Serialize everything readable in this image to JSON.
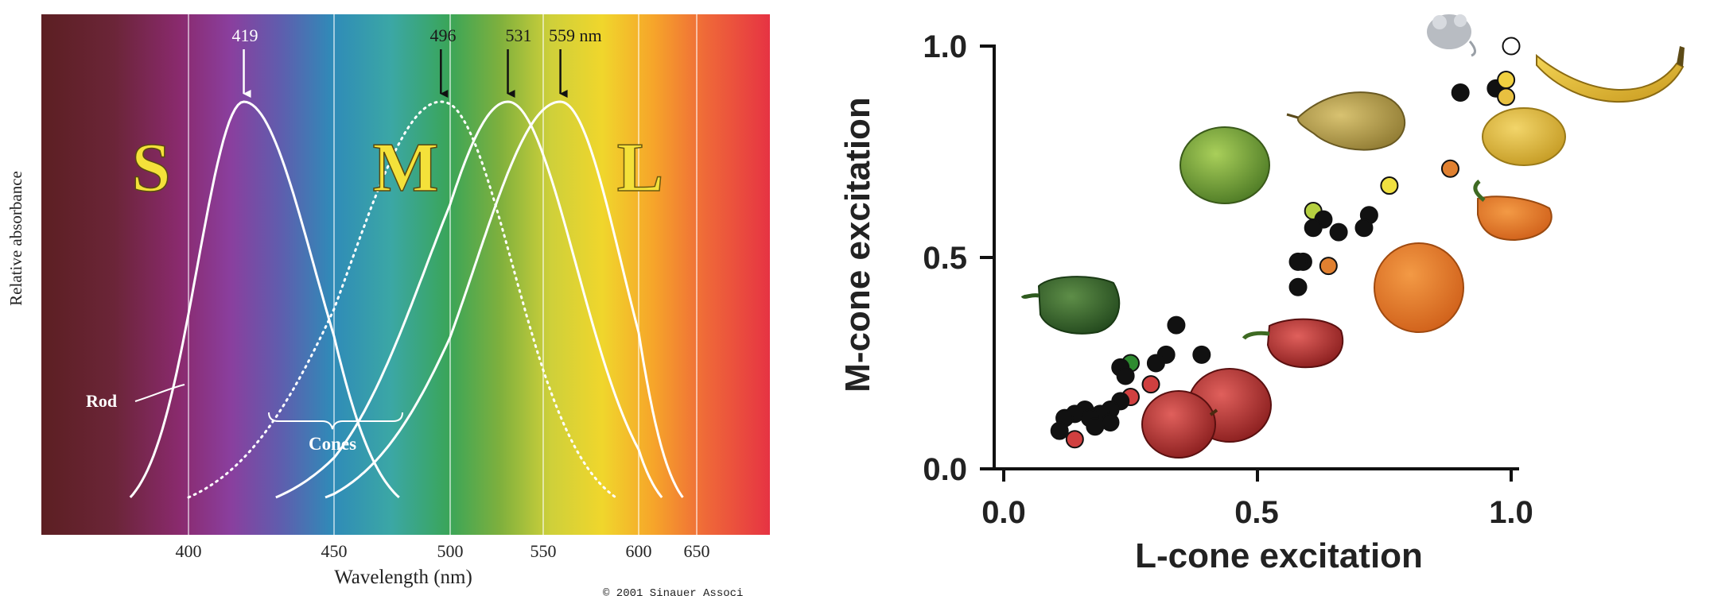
{
  "left_panel": {
    "peak_labels": [
      "419",
      "496",
      "531",
      "559 nm"
    ],
    "cone_letters": {
      "s": "S",
      "m": "M",
      "l": "L"
    },
    "rod_label": "Rod",
    "cones_label": "Cones",
    "ylabel": "Relative absorbance",
    "xlabel": "Wavelength (nm)",
    "x_ticks": [
      "400",
      "450",
      "500",
      "550",
      "600",
      "650"
    ],
    "copyright": "© 2001 Sinauer Associ"
  },
  "right_panel": {
    "ylabel": "M-cone excitation",
    "xlabel": "L-cone excitation",
    "x_ticks": [
      "0.0",
      "0.5",
      "1.0"
    ],
    "y_ticks": [
      "0.0",
      "0.5",
      "1.0"
    ]
  },
  "chart_data": [
    {
      "type": "line",
      "xlabel": "Wavelength (nm)",
      "ylabel": "Relative absorbance",
      "xlim": [
        320,
        680
      ],
      "ylim": [
        0,
        1.05
      ],
      "x_tick_values": [
        400,
        450,
        500,
        550,
        600,
        650
      ],
      "series": [
        {
          "name": "S",
          "peak": 419,
          "from": 380,
          "to": 478,
          "style": "solid"
        },
        {
          "name": "Rod",
          "peak": 496,
          "from": 400,
          "to": 588,
          "style": "dotted"
        },
        {
          "name": "M",
          "peak": 531,
          "from": 430,
          "to": 620,
          "style": "solid"
        },
        {
          "name": "L",
          "peak": 559,
          "from": 447,
          "to": 638,
          "style": "solid"
        }
      ],
      "peak_markers": [
        419,
        496,
        531,
        559
      ],
      "background": "visible spectrum gradient"
    },
    {
      "type": "scatter",
      "xlabel": "L-cone excitation",
      "ylabel": "M-cone excitation",
      "xlim": [
        0,
        1
      ],
      "ylim": [
        0,
        1
      ],
      "x_ticks": [
        0.0,
        0.5,
        1.0
      ],
      "y_ticks": [
        0.0,
        0.5,
        1.0
      ],
      "points": [
        {
          "x": 1.0,
          "y": 1.0,
          "color": "#ffffff"
        },
        {
          "x": 0.9,
          "y": 0.89,
          "color": "#111111"
        },
        {
          "x": 0.97,
          "y": 0.9,
          "color": "#111111"
        },
        {
          "x": 0.99,
          "y": 0.92,
          "color": "#f0d040"
        },
        {
          "x": 0.99,
          "y": 0.88,
          "color": "#e8c040"
        },
        {
          "x": 0.76,
          "y": 0.67,
          "color": "#f0e040"
        },
        {
          "x": 0.88,
          "y": 0.71,
          "color": "#e08030"
        },
        {
          "x": 0.61,
          "y": 0.61,
          "color": "#b5d040"
        },
        {
          "x": 0.72,
          "y": 0.6,
          "color": "#111111"
        },
        {
          "x": 0.71,
          "y": 0.57,
          "color": "#111111"
        },
        {
          "x": 0.63,
          "y": 0.59,
          "color": "#111111"
        },
        {
          "x": 0.61,
          "y": 0.57,
          "color": "#111111"
        },
        {
          "x": 0.66,
          "y": 0.56,
          "color": "#111111"
        },
        {
          "x": 0.59,
          "y": 0.49,
          "color": "#111111"
        },
        {
          "x": 0.58,
          "y": 0.49,
          "color": "#111111"
        },
        {
          "x": 0.64,
          "y": 0.48,
          "color": "#e08030"
        },
        {
          "x": 0.58,
          "y": 0.43,
          "color": "#111111"
        },
        {
          "x": 0.34,
          "y": 0.34,
          "color": "#111111"
        },
        {
          "x": 0.39,
          "y": 0.27,
          "color": "#111111"
        },
        {
          "x": 0.32,
          "y": 0.27,
          "color": "#111111"
        },
        {
          "x": 0.3,
          "y": 0.25,
          "color": "#111111"
        },
        {
          "x": 0.25,
          "y": 0.25,
          "color": "#2e8b30"
        },
        {
          "x": 0.23,
          "y": 0.24,
          "color": "#111111"
        },
        {
          "x": 0.24,
          "y": 0.22,
          "color": "#111111"
        },
        {
          "x": 0.29,
          "y": 0.2,
          "color": "#d04040"
        },
        {
          "x": 0.25,
          "y": 0.17,
          "color": "#d04040"
        },
        {
          "x": 0.23,
          "y": 0.16,
          "color": "#111111"
        },
        {
          "x": 0.21,
          "y": 0.14,
          "color": "#111111"
        },
        {
          "x": 0.19,
          "y": 0.13,
          "color": "#111111"
        },
        {
          "x": 0.16,
          "y": 0.14,
          "color": "#111111"
        },
        {
          "x": 0.14,
          "y": 0.13,
          "color": "#111111"
        },
        {
          "x": 0.17,
          "y": 0.12,
          "color": "#111111"
        },
        {
          "x": 0.21,
          "y": 0.11,
          "color": "#111111"
        },
        {
          "x": 0.18,
          "y": 0.1,
          "color": "#111111"
        },
        {
          "x": 0.12,
          "y": 0.12,
          "color": "#111111"
        },
        {
          "x": 0.11,
          "y": 0.09,
          "color": "#111111"
        },
        {
          "x": 0.14,
          "y": 0.07,
          "color": "#d04040"
        }
      ],
      "fruit_images": [
        "mouse",
        "banana",
        "pear",
        "lemon",
        "green apple",
        "orange pepper",
        "orange",
        "green pepper",
        "red pepper",
        "red apple",
        "red apple"
      ]
    }
  ]
}
